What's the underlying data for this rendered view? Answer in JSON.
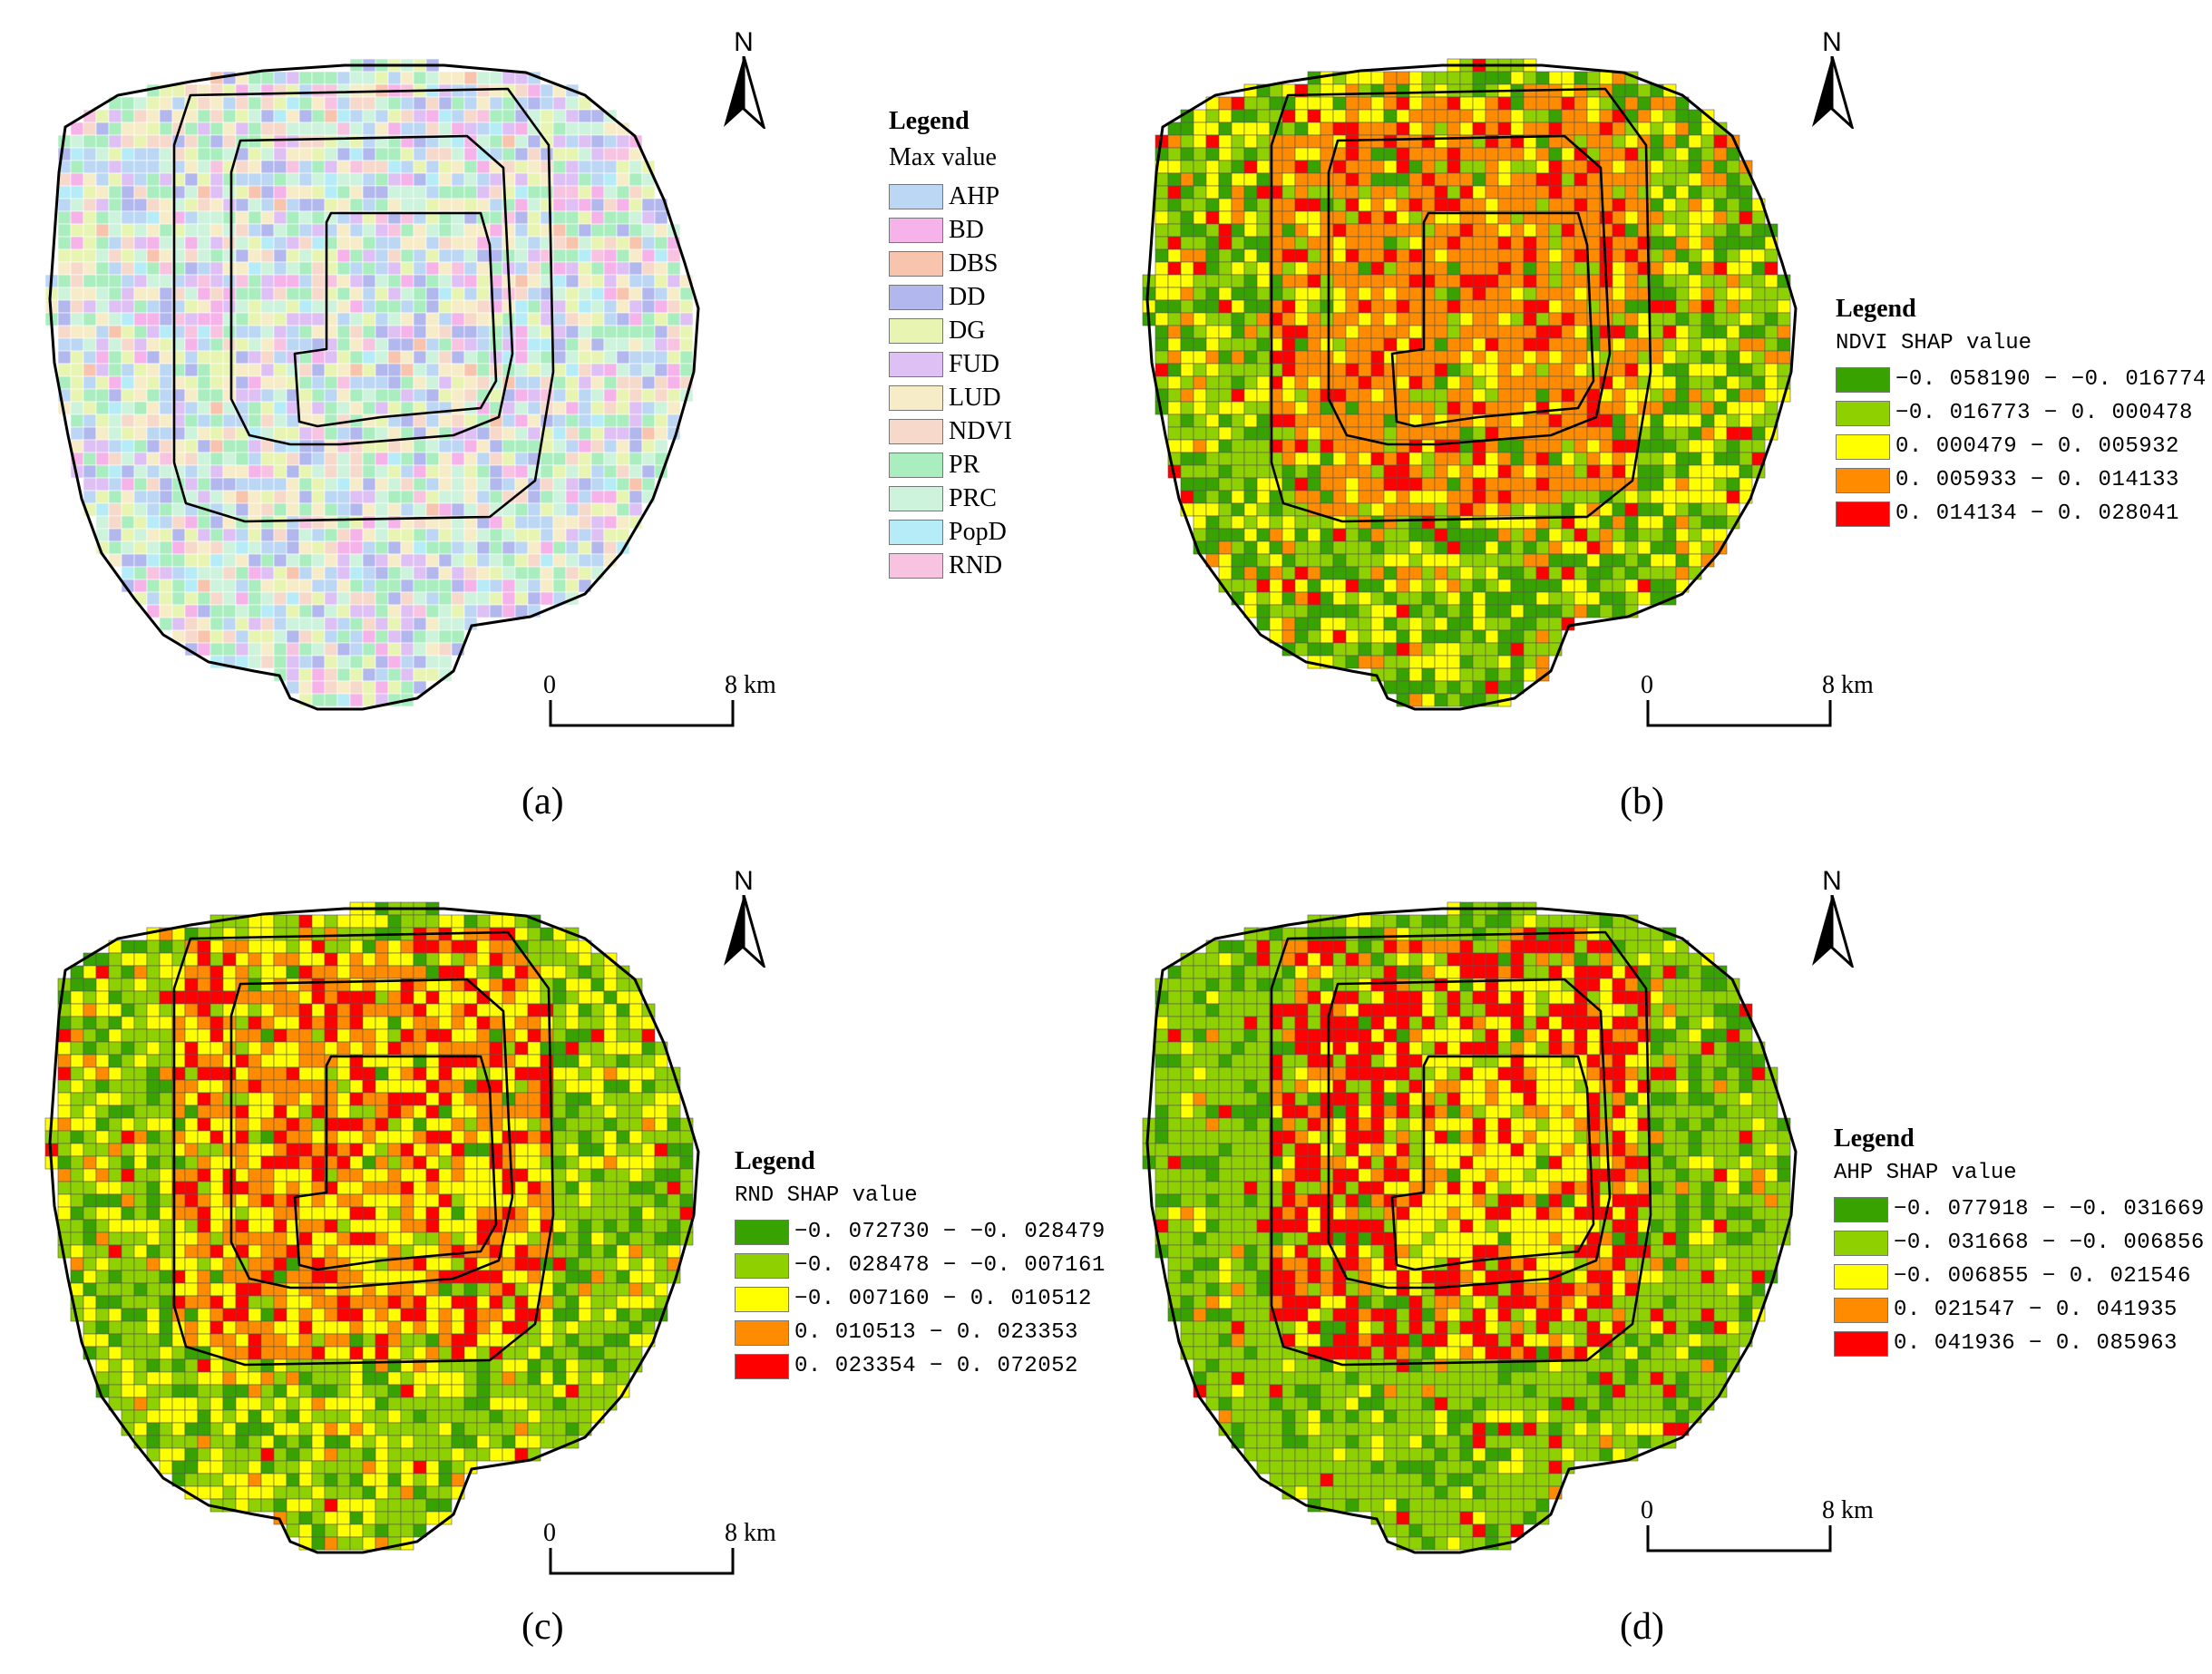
{
  "panels": [
    {
      "id": "a",
      "label": "(a)",
      "scheme": "categorical",
      "legend_title": "Legend",
      "legend_subtitle": "Max value",
      "legend_items": [
        {
          "label": "AHP",
          "color": "#bcd7f4"
        },
        {
          "label": "BD",
          "color": "#f5b3ea"
        },
        {
          "label": "DBS",
          "color": "#f8c4ad"
        },
        {
          "label": "DD",
          "color": "#b2b8ee"
        },
        {
          "label": "DG",
          "color": "#e8f4b2"
        },
        {
          "label": "FUD",
          "color": "#dfc0f4"
        },
        {
          "label": "LUD",
          "color": "#f7ecc8"
        },
        {
          "label": "NDVI",
          "color": "#f7d9cb"
        },
        {
          "label": "PR",
          "color": "#aaeec0"
        },
        {
          "label": "PRC",
          "color": "#cdf3dc"
        },
        {
          "label": "PopD",
          "color": "#b5ecf7"
        },
        {
          "label": "RND",
          "color": "#f7c3e1"
        }
      ],
      "north_label": "N",
      "scale_start": "0",
      "scale_end": "8 km"
    },
    {
      "id": "b",
      "label": "(b)",
      "scheme": "ndvi",
      "legend_title": "Legend",
      "legend_subtitle": "NDVI SHAP value",
      "legend_items": [
        {
          "label": "−0. 058190 − −0. 016774",
          "color": "#38a300"
        },
        {
          "label": "−0. 016773 − 0. 000478",
          "color": "#8fd100"
        },
        {
          "label": "0. 000479 − 0. 005932",
          "color": "#ffff00"
        },
        {
          "label": "0. 005933 − 0. 014133",
          "color": "#ff8c00"
        },
        {
          "label": "0. 014134 − 0. 028041",
          "color": "#ff0000"
        }
      ],
      "north_label": "N",
      "scale_start": "0",
      "scale_end": "8 km"
    },
    {
      "id": "c",
      "label": "(c)",
      "scheme": "rnd",
      "legend_title": "Legend",
      "legend_subtitle": "RND SHAP value",
      "legend_items": [
        {
          "label": "−0. 072730 − −0. 028479",
          "color": "#38a300"
        },
        {
          "label": "−0. 028478 − −0. 007161",
          "color": "#8fd100"
        },
        {
          "label": "−0. 007160 − 0. 010512",
          "color": "#ffff00"
        },
        {
          "label": "0. 010513 − 0. 023353",
          "color": "#ff8c00"
        },
        {
          "label": "0. 023354 − 0. 072052",
          "color": "#ff0000"
        }
      ],
      "north_label": "N",
      "scale_start": "0",
      "scale_end": "8 km"
    },
    {
      "id": "d",
      "label": "(d)",
      "scheme": "ahp",
      "legend_title": "Legend",
      "legend_subtitle": "AHP SHAP value",
      "legend_items": [
        {
          "label": "−0. 077918 − −0. 031669",
          "color": "#38a300"
        },
        {
          "label": "−0. 031668 − −0. 006856",
          "color": "#8fd100"
        },
        {
          "label": "−0. 006855 − 0. 021546",
          "color": "#ffff00"
        },
        {
          "label": "0. 021547 − 0. 041935",
          "color": "#ff8c00"
        },
        {
          "label": "0. 041936 − 0. 085963",
          "color": "#ff0000"
        }
      ],
      "north_label": "N",
      "scale_start": "0",
      "scale_end": "8 km"
    }
  ]
}
